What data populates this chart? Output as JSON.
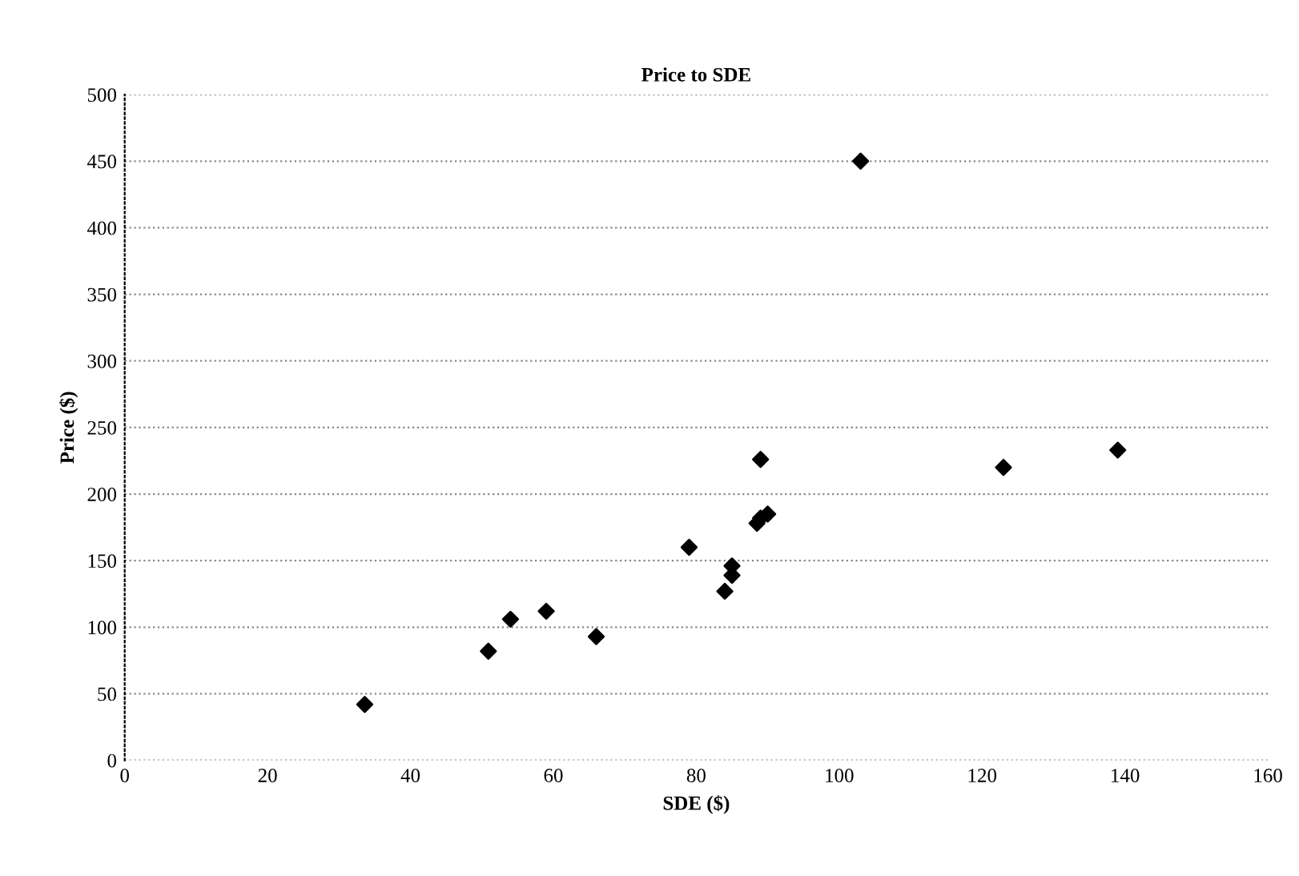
{
  "chart_data": {
    "type": "scatter",
    "title": "Price to SDE",
    "xlabel": "SDE ($)",
    "ylabel": "Price ($)",
    "x": [
      33.6,
      50.9,
      54,
      59,
      66,
      79,
      84,
      85,
      85,
      88.5,
      89,
      90,
      89,
      103,
      123,
      139
    ],
    "series": [
      {
        "color": "#000000",
        "values": [
          42,
          82,
          106,
          112,
          93,
          160,
          127,
          139,
          146,
          178,
          182,
          185,
          226,
          450,
          220,
          233
        ]
      }
    ],
    "xlim": [
      0,
      160
    ],
    "xticks": [
      0,
      20,
      40,
      60,
      80,
      100,
      120,
      140,
      160
    ],
    "ylim": [
      0,
      500
    ],
    "yticks": [
      0,
      50,
      100,
      150,
      200,
      250,
      300,
      350,
      400,
      450,
      500
    ],
    "grid": "y",
    "marker": "diamond",
    "legend": false
  }
}
